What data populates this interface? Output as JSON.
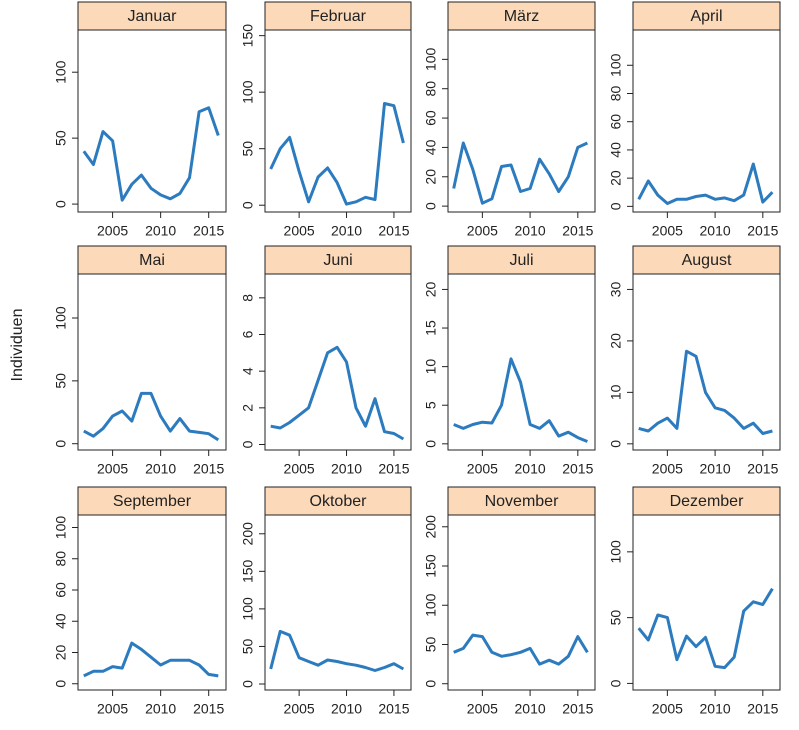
{
  "y_axis_label": "Individuen",
  "chart_data": [
    {
      "type": "line",
      "title": "Januar",
      "color": "#2c7bbf",
      "x": [
        2002,
        2003,
        2004,
        2005,
        2006,
        2007,
        2008,
        2009,
        2010,
        2011,
        2012,
        2013,
        2014,
        2015,
        2016
      ],
      "values": [
        40,
        30,
        55,
        48,
        3,
        15,
        22,
        12,
        7,
        4,
        8,
        20,
        70,
        73,
        52
      ],
      "xlim": [
        2001.4,
        2016.8
      ],
      "xticks": [
        2005,
        2010,
        2015
      ],
      "ylim": [
        -6,
        132
      ],
      "yticks": [
        0,
        50,
        100
      ]
    },
    {
      "type": "line",
      "title": "Februar",
      "color": "#2c7bbf",
      "x": [
        2002,
        2003,
        2004,
        2005,
        2006,
        2007,
        2008,
        2009,
        2010,
        2011,
        2012,
        2013,
        2014,
        2015,
        2016
      ],
      "values": [
        32,
        50,
        60,
        30,
        3,
        25,
        33,
        20,
        1,
        3,
        7,
        5,
        90,
        88,
        55
      ],
      "xlim": [
        2001.4,
        2016.8
      ],
      "xticks": [
        2005,
        2010,
        2015
      ],
      "ylim": [
        -6,
        155
      ],
      "yticks": [
        0,
        50,
        100,
        150
      ]
    },
    {
      "type": "line",
      "title": "März",
      "color": "#2c7bbf",
      "x": [
        2002,
        2003,
        2004,
        2005,
        2006,
        2007,
        2008,
        2009,
        2010,
        2011,
        2012,
        2013,
        2014,
        2015,
        2016
      ],
      "values": [
        12,
        43,
        25,
        2,
        5,
        27,
        28,
        10,
        12,
        32,
        22,
        10,
        20,
        40,
        43
      ],
      "xlim": [
        2001.4,
        2016.8
      ],
      "xticks": [
        2005,
        2010,
        2015
      ],
      "ylim": [
        -4,
        120
      ],
      "yticks": [
        0,
        20,
        40,
        60,
        80,
        100
      ]
    },
    {
      "type": "line",
      "title": "April",
      "color": "#2c7bbf",
      "x": [
        2002,
        2003,
        2004,
        2005,
        2006,
        2007,
        2008,
        2009,
        2010,
        2011,
        2012,
        2013,
        2014,
        2015,
        2016
      ],
      "values": [
        5,
        18,
        8,
        2,
        5,
        5,
        7,
        8,
        5,
        6,
        4,
        8,
        30,
        3,
        10
      ],
      "xlim": [
        2001.4,
        2016.8
      ],
      "xticks": [
        2005,
        2010,
        2015
      ],
      "ylim": [
        -4,
        125
      ],
      "yticks": [
        0,
        20,
        40,
        60,
        80,
        100
      ]
    },
    {
      "type": "line",
      "title": "Mai",
      "color": "#2c7bbf",
      "x": [
        2002,
        2003,
        2004,
        2005,
        2006,
        2007,
        2008,
        2009,
        2010,
        2011,
        2012,
        2013,
        2014,
        2015,
        2016
      ],
      "values": [
        10,
        6,
        12,
        22,
        26,
        18,
        40,
        40,
        22,
        10,
        20,
        10,
        9,
        8,
        3
      ],
      "xlim": [
        2001.4,
        2016.8
      ],
      "xticks": [
        2005,
        2010,
        2015
      ],
      "ylim": [
        -5,
        135
      ],
      "yticks": [
        0,
        50,
        100
      ]
    },
    {
      "type": "line",
      "title": "Juni",
      "color": "#2c7bbf",
      "x": [
        2002,
        2003,
        2004,
        2005,
        2006,
        2007,
        2008,
        2009,
        2010,
        2011,
        2012,
        2013,
        2014,
        2015,
        2016
      ],
      "values": [
        1.0,
        0.9,
        1.2,
        1.6,
        2.0,
        3.5,
        5.0,
        5.3,
        4.5,
        2.0,
        1.0,
        2.5,
        0.7,
        0.6,
        0.3
      ],
      "xlim": [
        2001.4,
        2016.8
      ],
      "xticks": [
        2005,
        2010,
        2015
      ],
      "ylim": [
        -0.3,
        9.3
      ],
      "yticks": [
        0,
        2,
        4,
        6,
        8
      ]
    },
    {
      "type": "line",
      "title": "Juli",
      "color": "#2c7bbf",
      "x": [
        2002,
        2003,
        2004,
        2005,
        2006,
        2007,
        2008,
        2009,
        2010,
        2011,
        2012,
        2013,
        2014,
        2015,
        2016
      ],
      "values": [
        2.5,
        2,
        2.5,
        2.8,
        2.7,
        5,
        11,
        8,
        2.5,
        2,
        3,
        1,
        1.5,
        0.8,
        0.3
      ],
      "xlim": [
        2001.4,
        2016.8
      ],
      "xticks": [
        2005,
        2010,
        2015
      ],
      "ylim": [
        -0.8,
        22
      ],
      "yticks": [
        0,
        5,
        10,
        15,
        20
      ]
    },
    {
      "type": "line",
      "title": "August",
      "color": "#2c7bbf",
      "x": [
        2002,
        2003,
        2004,
        2005,
        2006,
        2007,
        2008,
        2009,
        2010,
        2011,
        2012,
        2013,
        2014,
        2015,
        2016
      ],
      "values": [
        3,
        2.5,
        4,
        5,
        3,
        18,
        17,
        10,
        7,
        6.5,
        5,
        3,
        4,
        2,
        2.5
      ],
      "xlim": [
        2001.4,
        2016.8
      ],
      "xticks": [
        2005,
        2010,
        2015
      ],
      "ylim": [
        -1.2,
        33
      ],
      "yticks": [
        0,
        10,
        20,
        30
      ]
    },
    {
      "type": "line",
      "title": "September",
      "color": "#2c7bbf",
      "x": [
        2002,
        2003,
        2004,
        2005,
        2006,
        2007,
        2008,
        2009,
        2010,
        2011,
        2012,
        2013,
        2014,
        2015,
        2016
      ],
      "values": [
        5,
        8,
        8,
        11,
        10,
        26,
        22,
        17,
        12,
        15,
        15,
        15,
        12,
        6,
        5
      ],
      "xlim": [
        2001.4,
        2016.8
      ],
      "xticks": [
        2005,
        2010,
        2015
      ],
      "ylim": [
        -4,
        108
      ],
      "yticks": [
        0,
        20,
        40,
        60,
        80,
        100
      ]
    },
    {
      "type": "line",
      "title": "Oktober",
      "color": "#2c7bbf",
      "x": [
        2002,
        2003,
        2004,
        2005,
        2006,
        2007,
        2008,
        2009,
        2010,
        2011,
        2012,
        2013,
        2014,
        2015,
        2016
      ],
      "values": [
        20,
        70,
        65,
        35,
        30,
        25,
        32,
        30,
        27,
        25,
        22,
        18,
        22,
        27,
        20
      ],
      "xlim": [
        2001.4,
        2016.8
      ],
      "xticks": [
        2005,
        2010,
        2015
      ],
      "ylim": [
        -8,
        225
      ],
      "yticks": [
        0,
        50,
        100,
        150,
        200
      ]
    },
    {
      "type": "line",
      "title": "November",
      "color": "#2c7bbf",
      "x": [
        2002,
        2003,
        2004,
        2005,
        2006,
        2007,
        2008,
        2009,
        2010,
        2011,
        2012,
        2013,
        2014,
        2015,
        2016
      ],
      "values": [
        40,
        45,
        62,
        60,
        40,
        35,
        37,
        40,
        45,
        25,
        30,
        25,
        35,
        60,
        40
      ],
      "xlim": [
        2001.4,
        2016.8
      ],
      "xticks": [
        2005,
        2010,
        2015
      ],
      "ylim": [
        -8,
        215
      ],
      "yticks": [
        0,
        50,
        100,
        150,
        200
      ]
    },
    {
      "type": "line",
      "title": "Dezember",
      "color": "#2c7bbf",
      "x": [
        2002,
        2003,
        2004,
        2005,
        2006,
        2007,
        2008,
        2009,
        2010,
        2011,
        2012,
        2013,
        2014,
        2015,
        2016
      ],
      "values": [
        42,
        33,
        52,
        50,
        18,
        36,
        28,
        35,
        13,
        12,
        20,
        55,
        62,
        60,
        72
      ],
      "xlim": [
        2001.4,
        2016.8
      ],
      "xticks": [
        2005,
        2010,
        2015
      ],
      "ylim": [
        -5,
        128
      ],
      "yticks": [
        0,
        50,
        100
      ]
    }
  ]
}
